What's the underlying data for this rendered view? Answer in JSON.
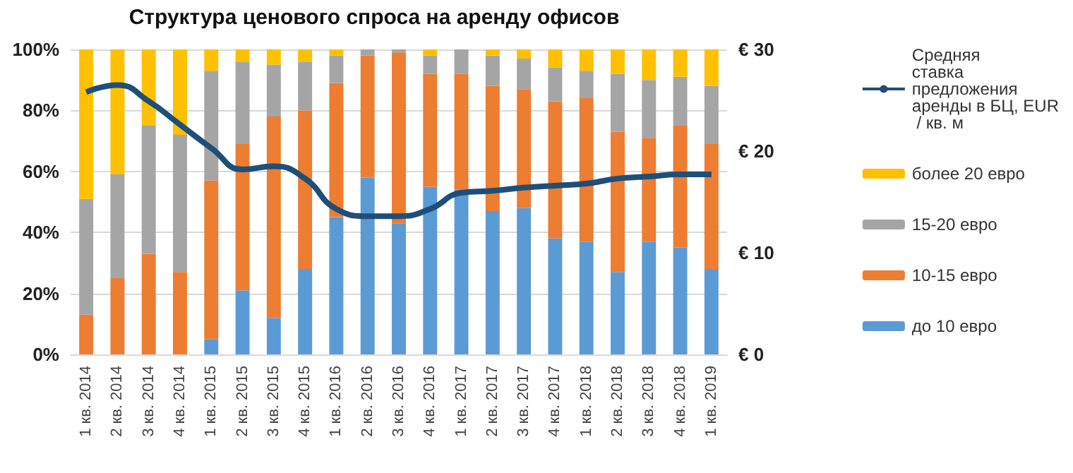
{
  "chart_data": {
    "type": "bar",
    "title": "Структура ценового спроса на аренду офисов",
    "categories": [
      "1 кв. 2014",
      "2 кв. 2014",
      "3 кв. 2014",
      "4 кв. 2014",
      "1 кв. 2015",
      "2 кв. 2015",
      "3 кв. 2015",
      "4 кв. 2015",
      "1 кв. 2016",
      "2 кв. 2016",
      "3 кв. 2016",
      "4 кв. 2016",
      "1 кв. 2017",
      "2 кв. 2017",
      "3 кв. 2017",
      "4 кв. 2017",
      "1 кв. 2018",
      "2 кв. 2018",
      "3 кв. 2018",
      "4 кв. 2018",
      "1 кв. 2019"
    ],
    "stacked": true,
    "series": [
      {
        "name": "до 10 евро",
        "color": "#5b9bd5",
        "values": [
          0,
          0,
          0,
          0,
          5,
          21,
          12,
          28,
          45,
          58,
          43,
          55,
          54,
          47,
          48,
          38,
          37,
          27,
          37,
          35,
          28
        ]
      },
      {
        "name": "10-15 евро",
        "color": "#ed7d31",
        "values": [
          13,
          25,
          33,
          27,
          52,
          48,
          66,
          52,
          44,
          40,
          56,
          37,
          38,
          41,
          39,
          45,
          47,
          46,
          34,
          40,
          41
        ]
      },
      {
        "name": "15-20 евро",
        "color": "#a5a5a5",
        "values": [
          38,
          34,
          42,
          45,
          36,
          27,
          17,
          16,
          9,
          2,
          1,
          6,
          8,
          10,
          10,
          11,
          9,
          19,
          19,
          16,
          19
        ]
      },
      {
        "name": "более 20 евро",
        "color": "#ffc000",
        "values": [
          49,
          41,
          25,
          28,
          7,
          4,
          5,
          4,
          2,
          0,
          0,
          2,
          0,
          2,
          3,
          6,
          7,
          8,
          10,
          9,
          12
        ]
      },
      {
        "name": "Средняя ставка предложения аренды в БЦ, EUR / кв. м",
        "type": "line",
        "axis": "y2",
        "color": "#1f4e79",
        "marker": "none",
        "values": [
          25.8,
          26.5,
          24.9,
          22.6,
          20.3,
          18.2,
          18.5,
          17.3,
          14.3,
          13.6,
          13.6,
          14.3,
          15.9,
          16.1,
          16.4,
          16.6,
          16.8,
          17.3,
          17.5,
          17.7,
          17.7
        ]
      }
    ],
    "ylim": [
      0,
      100
    ],
    "yticks": [
      {
        "value": 0,
        "label": "0%"
      },
      {
        "value": 20,
        "label": "20%"
      },
      {
        "value": 40,
        "label": "40%"
      },
      {
        "value": 60,
        "label": "60%"
      },
      {
        "value": 80,
        "label": "80%"
      },
      {
        "value": 100,
        "label": "100%"
      }
    ],
    "y2lim": [
      0,
      30
    ],
    "y2ticks": [
      {
        "value": 0,
        "label": "€ 0"
      },
      {
        "value": 10,
        "label": "€ 10"
      },
      {
        "value": 20,
        "label": "€ 20"
      },
      {
        "value": 30,
        "label": "€ 30"
      }
    ],
    "grid": "y",
    "legend": "right"
  }
}
